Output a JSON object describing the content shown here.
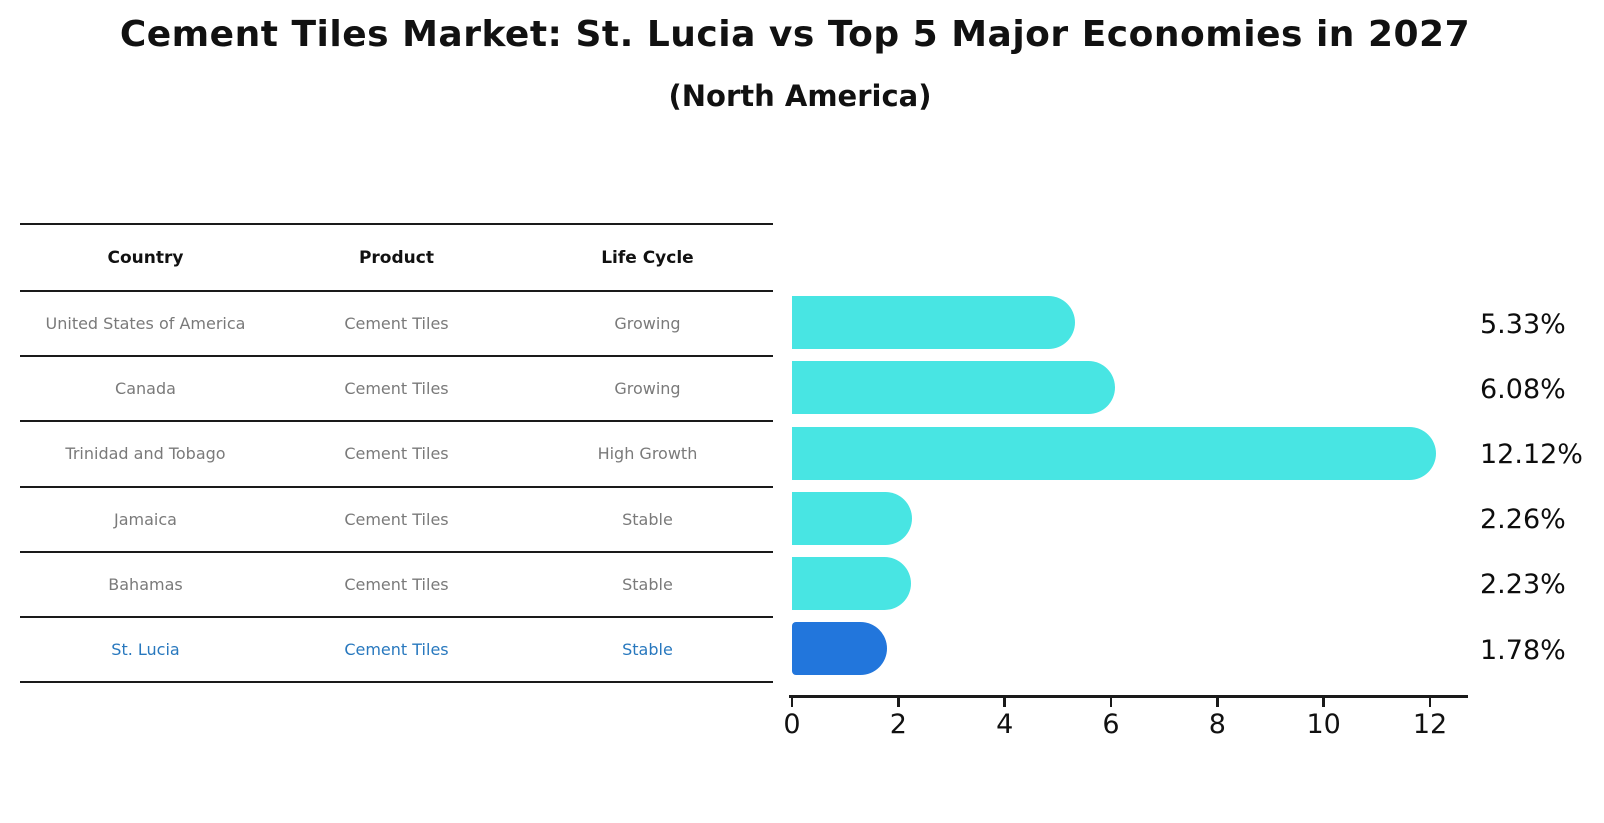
{
  "chart_data": {
    "type": "bar",
    "orientation": "horizontal",
    "title": "Cement Tiles Market: St. Lucia vs Top 5 Major Economies in 2027",
    "subtitle": "(North America)",
    "categories": [
      "United States of America",
      "Canada",
      "Trinidad and Tobago",
      "Jamaica",
      "Bahamas",
      "St. Lucia"
    ],
    "values": [
      5.33,
      6.08,
      12.12,
      2.26,
      2.23,
      1.78
    ],
    "value_labels": [
      "5.33%",
      "6.08%",
      "12.12%",
      "2.26%",
      "2.23%",
      "1.78%"
    ],
    "xticks": [
      0,
      2,
      4,
      6,
      8,
      10,
      12
    ],
    "xlim": [
      0,
      12.7
    ],
    "grid": false,
    "legend": "none",
    "bar_color": "#48e5e3",
    "highlight_bar_color": "#2276dc",
    "highlight_index": 5
  },
  "table": {
    "headers": [
      "Country",
      "Product",
      "Life Cycle"
    ],
    "rows": [
      {
        "country": "United States of America",
        "product": "Cement Tiles",
        "life_cycle": "Growing",
        "highlight": false
      },
      {
        "country": "Canada",
        "product": "Cement Tiles",
        "life_cycle": "Growing",
        "highlight": false
      },
      {
        "country": "Trinidad and Tobago",
        "product": "Cement Tiles",
        "life_cycle": "High Growth",
        "highlight": false
      },
      {
        "country": "Jamaica",
        "product": "Cement Tiles",
        "life_cycle": "Stable",
        "highlight": false
      },
      {
        "country": "Bahamas",
        "product": "Cement Tiles",
        "life_cycle": "Stable",
        "highlight": false
      },
      {
        "country": "St. Lucia",
        "product": "Cement Tiles",
        "life_cycle": "Stable",
        "highlight": true
      }
    ],
    "highlight_text_color": "#2878be",
    "normal_text_color": "#7a7a7a"
  }
}
